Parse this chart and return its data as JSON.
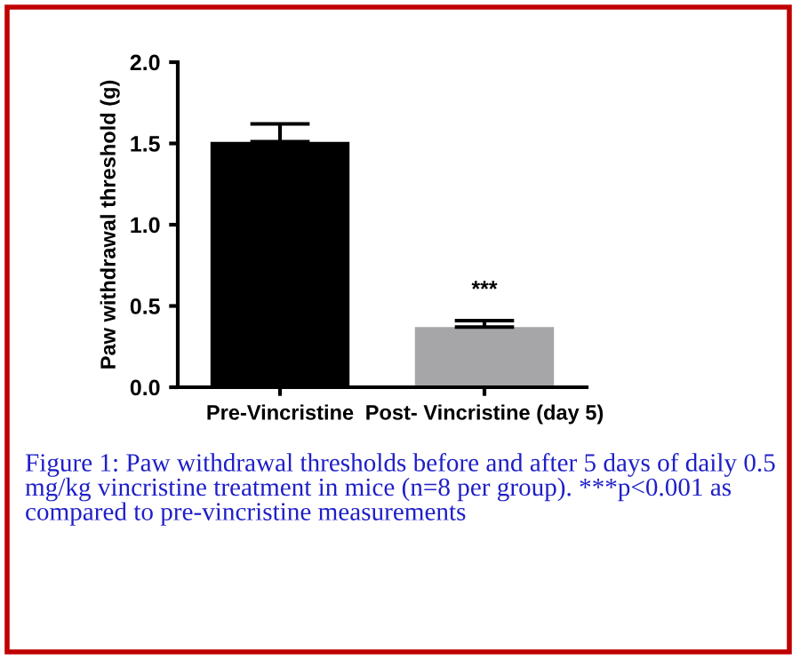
{
  "chart_data": {
    "type": "bar",
    "ylabel": "Paw withdrawal threshold (g)",
    "categories": [
      "Pre-Vincristine",
      "Post- Vincristine (day 5)"
    ],
    "values": [
      1.51,
      0.37
    ],
    "colors": [
      "#000000",
      "#a6a6a8"
    ],
    "errors": [
      [
        1.51,
        1.62
      ],
      [
        0.37,
        0.41
      ]
    ],
    "ylim": [
      0,
      2.0
    ],
    "yticks": [
      {
        "value": 0,
        "label": "0.0"
      },
      {
        "value": 0.5,
        "label": "0.5"
      },
      {
        "value": 1.0,
        "label": "1.0"
      },
      {
        "value": 1.5,
        "label": "1.5"
      },
      {
        "value": 2.0,
        "label": "2.0"
      }
    ],
    "grid": false,
    "annotations": [
      {
        "text": "***",
        "x": "Post- Vincristine (day 5)",
        "y": 0.41
      },
      "Figure 1: Paw withdrawal thresholds before and after 5 days of daily 0.5 mg/kg vincristine treatment in mice (n=8 per group). ***p<0.001 as compared to pre-vincristine measurements"
    ]
  }
}
